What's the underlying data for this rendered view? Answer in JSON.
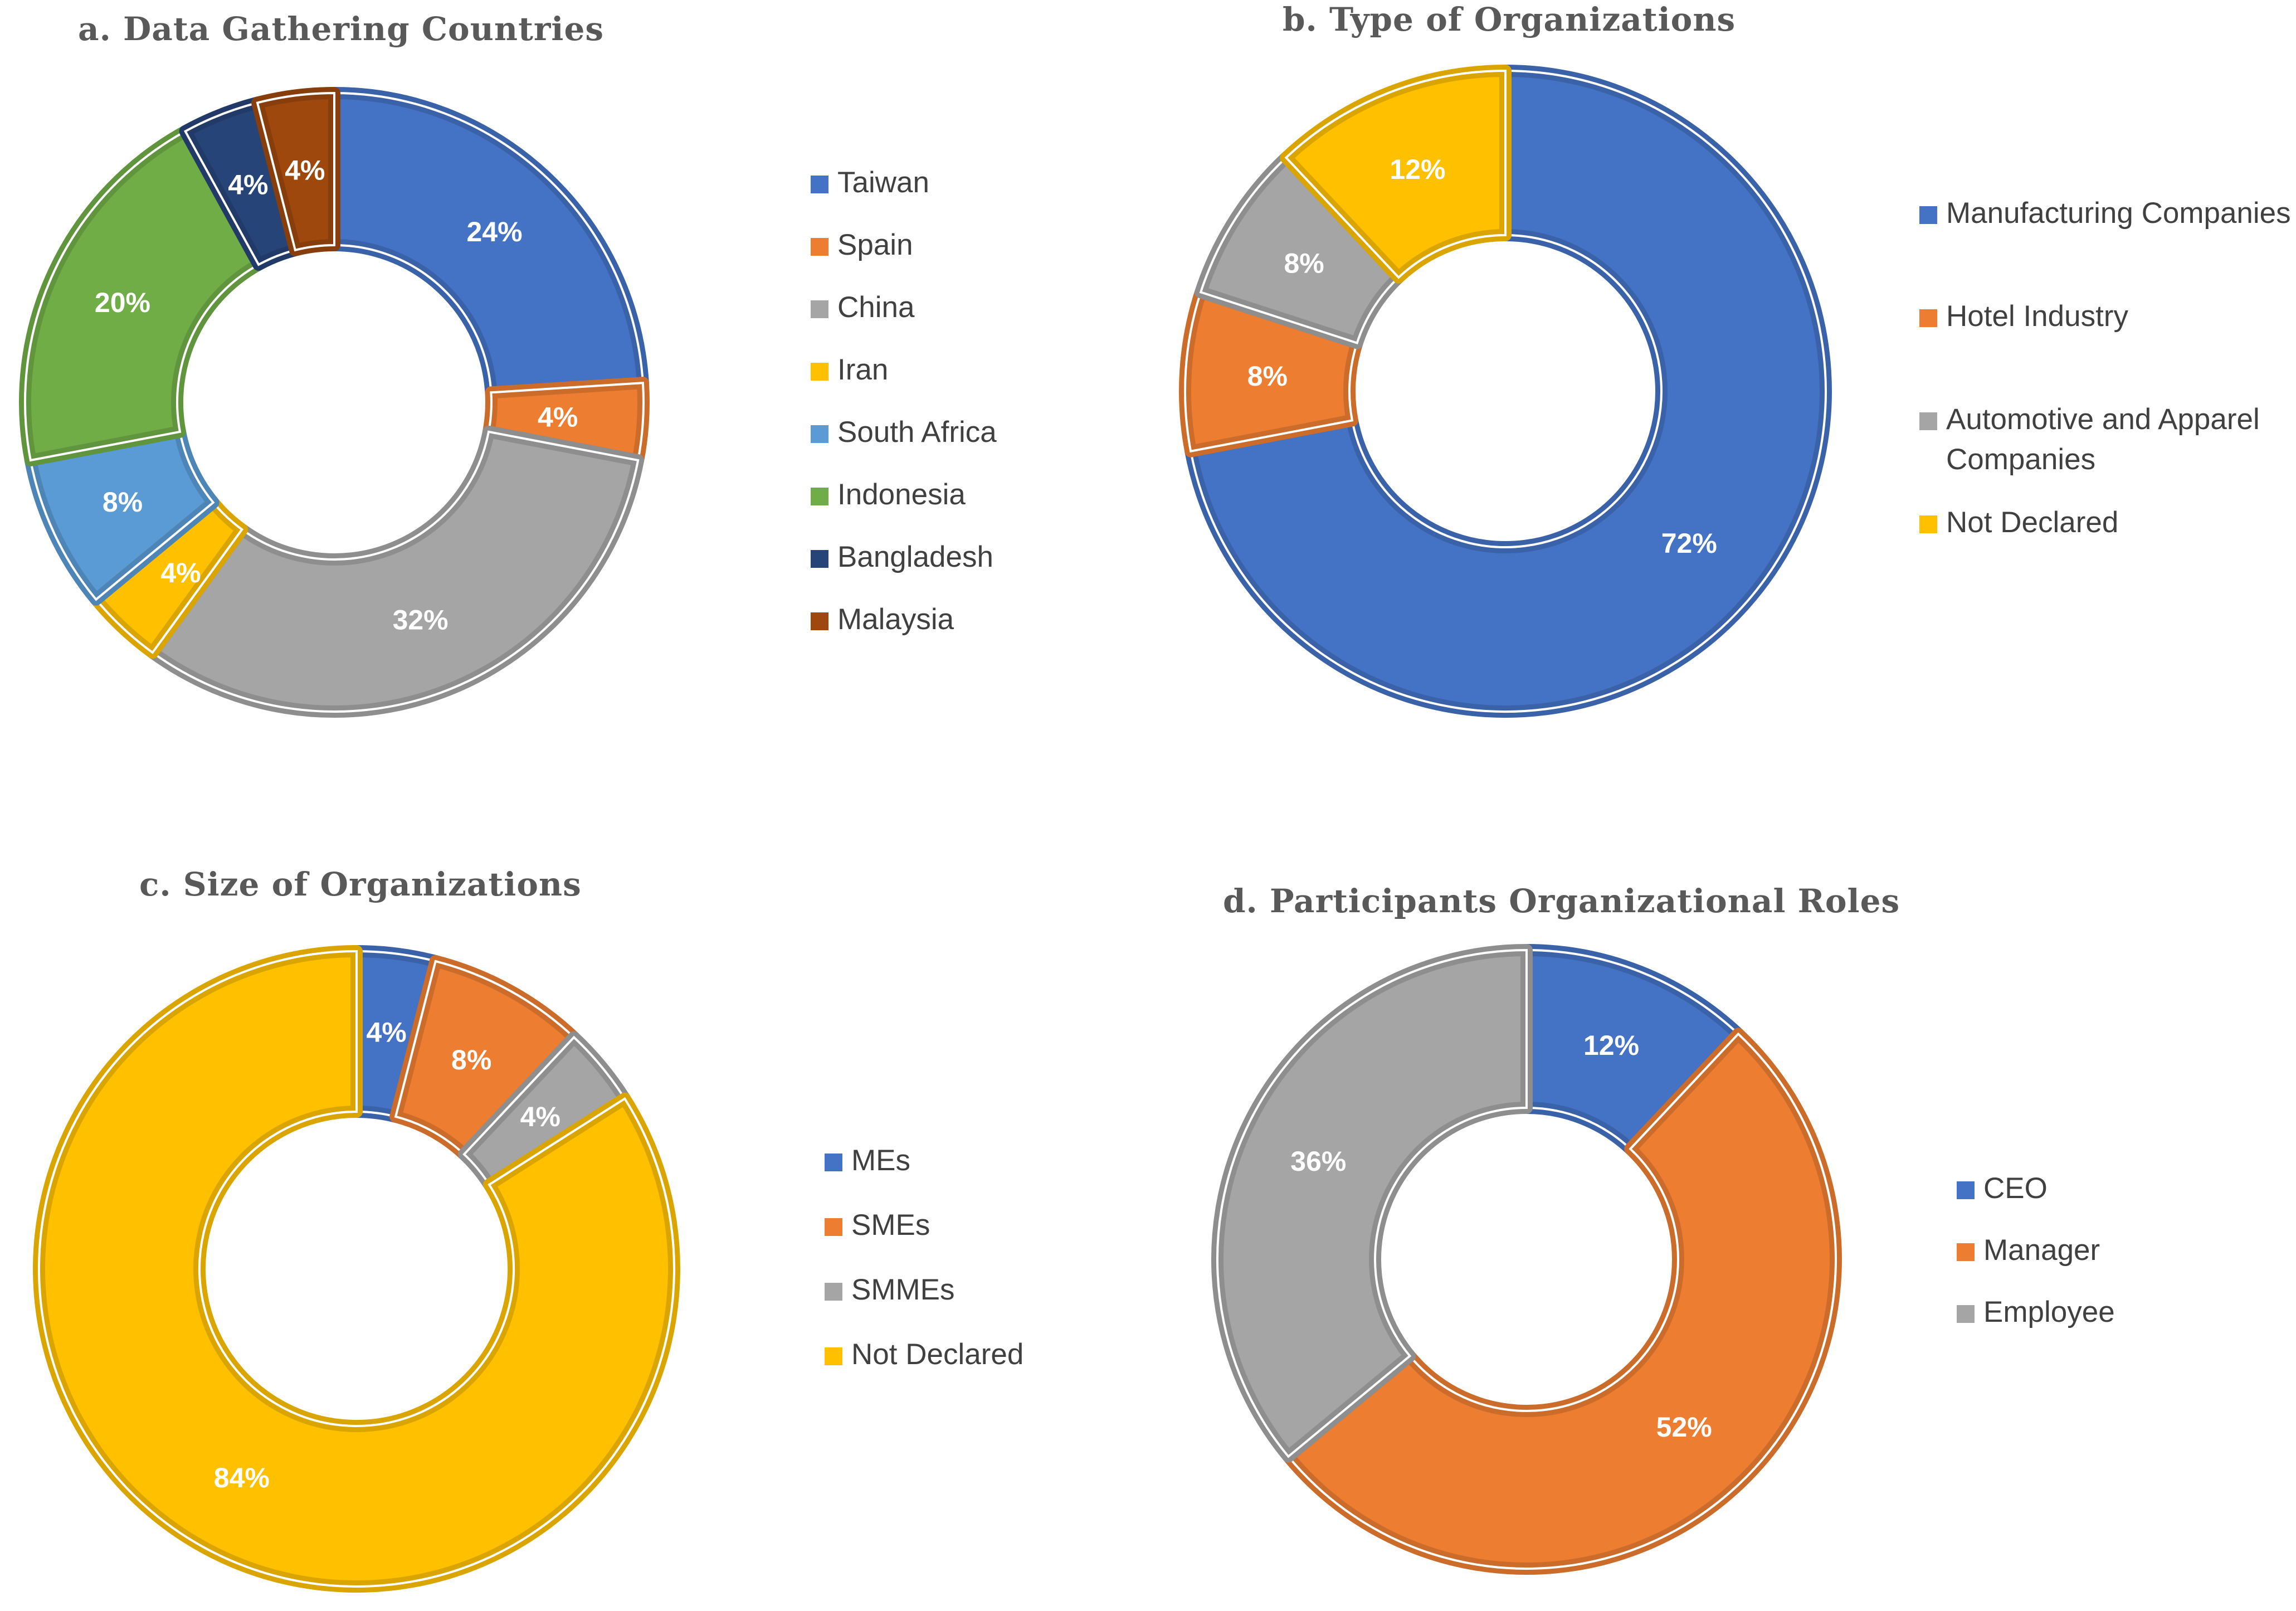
{
  "chart_data": [
    {
      "type": "pie",
      "subtype": "donut",
      "title": "a. Data Gathering Countries",
      "labels": [
        "Taiwan",
        "Spain",
        "China",
        "Iran",
        "South Africa",
        "Indonesia",
        "Bangladesh",
        "Malaysia"
      ],
      "values": [
        24,
        4,
        32,
        4,
        8,
        20,
        4,
        4
      ],
      "value_labels": [
        "24%",
        "4%",
        "32%",
        "4%",
        "8%",
        "20%",
        "4%",
        "4%"
      ],
      "colors": [
        "#4472C4",
        "#ED7D31",
        "#A5A5A5",
        "#FFC000",
        "#5B9BD5",
        "#70AD47",
        "#264478",
        "#9E480E"
      ],
      "legend": [
        [
          "Taiwan"
        ],
        [
          "Spain"
        ],
        [
          "China"
        ],
        [
          "Iran"
        ],
        [
          "South Africa"
        ],
        [
          "Indonesia"
        ],
        [
          "Bangladesh"
        ],
        [
          "Malaysia"
        ]
      ],
      "legend_position": "right"
    },
    {
      "type": "pie",
      "subtype": "donut",
      "title": "b. Type of Organizations",
      "labels": [
        "Manufacturing Companies",
        "Hotel Industry",
        "Automotive and Apparel Companies",
        "Not Declared"
      ],
      "values": [
        72,
        8,
        8,
        12
      ],
      "value_labels": [
        "72%",
        "8%",
        "8%",
        "12%"
      ],
      "colors": [
        "#4472C4",
        "#ED7D31",
        "#A5A5A5",
        "#FFC000"
      ],
      "legend": [
        [
          "Manufacturing Companies"
        ],
        [
          "Hotel Industry"
        ],
        [
          "Automotive and Apparel",
          "Companies"
        ],
        [
          "Not Declared"
        ]
      ],
      "legend_position": "right"
    },
    {
      "type": "pie",
      "subtype": "donut",
      "title": "c. Size of Organizations",
      "labels": [
        "MEs",
        "SMEs",
        "SMMEs",
        "Not Declared"
      ],
      "values": [
        4,
        8,
        4,
        84
      ],
      "value_labels": [
        "4%",
        "8%",
        "4%",
        "84%"
      ],
      "colors": [
        "#4472C4",
        "#ED7D31",
        "#A5A5A5",
        "#FFC000"
      ],
      "legend": [
        [
          "MEs"
        ],
        [
          "SMEs"
        ],
        [
          "SMMEs"
        ],
        [
          "Not Declared"
        ]
      ],
      "legend_position": "right"
    },
    {
      "type": "pie",
      "subtype": "donut",
      "title": "d. Participants Organizational Roles",
      "labels": [
        "CEO",
        "Manager",
        "Employee"
      ],
      "values": [
        12,
        52,
        36
      ],
      "value_labels": [
        "12%",
        "52%",
        "36%"
      ],
      "colors": [
        "#4472C4",
        "#ED7D31",
        "#A5A5A5"
      ],
      "legend": [
        [
          "CEO"
        ],
        [
          "Manager"
        ],
        [
          "Employee"
        ]
      ],
      "legend_position": "right"
    }
  ]
}
